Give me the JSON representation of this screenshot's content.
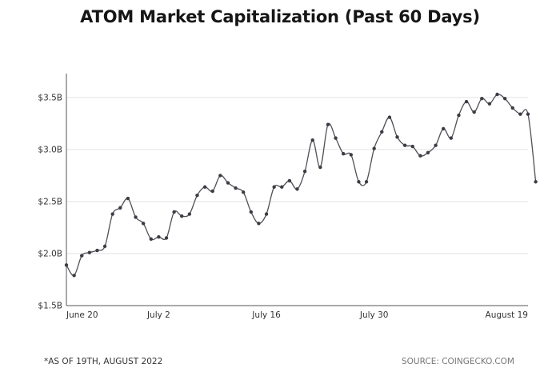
{
  "title": "ATOM Market Capitalization (Past 60 Days)",
  "footnote": "*AS OF 19TH, AUGUST 2022",
  "source": "SOURCE: COINGECKO.COM",
  "colors": {
    "line": "#505057",
    "point": "#3c3c44",
    "grid": "#e2e2e2",
    "axis": "#555555"
  },
  "chart_data": {
    "type": "line",
    "title": "ATOM Market Capitalization (Past 60 Days)",
    "xlabel": "",
    "ylabel": "",
    "grid": true,
    "x_ticks": [
      {
        "label": "June 20",
        "index": 0
      },
      {
        "label": "July 2",
        "index": 12
      },
      {
        "label": "July 16",
        "index": 26
      },
      {
        "label": "July 30",
        "index": 40
      },
      {
        "label": "August 19",
        "index": 60
      }
    ],
    "y_ticks": [
      {
        "label": "$1.5B",
        "value": 1.5
      },
      {
        "label": "$2.0B",
        "value": 2.0
      },
      {
        "label": "$2.5B",
        "value": 2.5
      },
      {
        "label": "$3.0B",
        "value": 3.0
      },
      {
        "label": "$3.5B",
        "value": 3.5
      }
    ],
    "ylim": [
      1.5,
      3.73
    ],
    "xlim": [
      0,
      60
    ],
    "units": "USD billions",
    "series": [
      {
        "values": [
          1.89,
          1.79,
          1.98,
          2.01,
          2.03,
          2.07,
          2.38,
          2.44,
          2.53,
          2.35,
          2.29,
          2.14,
          2.16,
          2.15,
          2.4,
          2.36,
          2.38,
          2.56,
          2.64,
          2.6,
          2.75,
          2.68,
          2.63,
          2.59,
          2.4,
          2.29,
          2.38,
          2.64,
          2.64,
          2.7,
          2.62,
          2.79,
          3.09,
          2.83,
          3.24,
          3.11,
          2.96,
          2.95,
          2.69,
          2.69,
          3.01,
          3.17,
          3.31,
          3.12,
          3.04,
          3.03,
          2.94,
          2.97,
          3.04,
          3.2,
          3.11,
          3.33,
          3.46,
          3.36,
          3.49,
          3.44,
          3.53,
          3.49,
          3.4,
          3.34,
          3.34,
          2.69
        ]
      }
    ]
  }
}
